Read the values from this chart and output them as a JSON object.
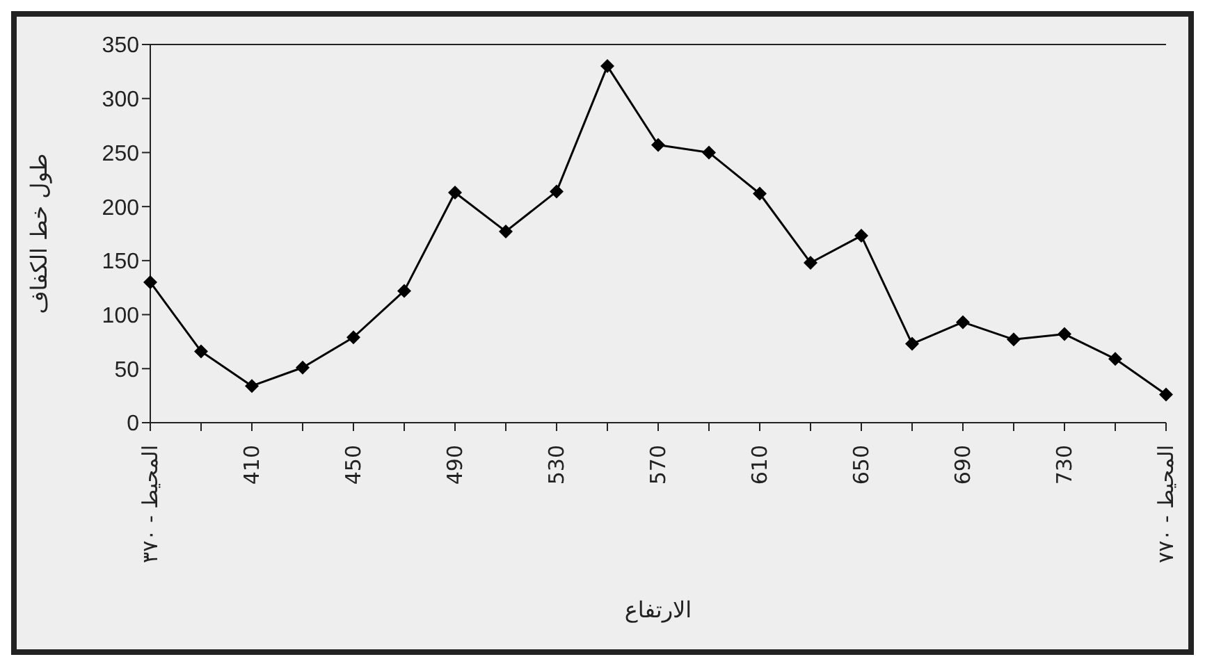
{
  "chart_data": {
    "type": "line",
    "xlabel": "الارتفاع",
    "ylabel": "طول خط الكفاف",
    "categories": [
      "المحيط - ٣٧٠",
      null,
      "410",
      null,
      "450",
      null,
      "490",
      null,
      "530",
      null,
      "570",
      null,
      "610",
      null,
      "650",
      null,
      "690",
      null,
      "730",
      null,
      "المحيط - ٧٧٠"
    ],
    "series": [
      {
        "color": "#000000",
        "values": [
          130,
          66,
          34,
          51,
          79,
          122,
          213,
          177,
          214,
          330,
          257,
          250,
          212,
          148,
          173,
          73,
          93,
          77,
          82,
          59,
          26
        ]
      }
    ],
    "ylim": [
      0,
      350
    ],
    "yticks": [
      0,
      50,
      100,
      150,
      200,
      250,
      300,
      350
    ],
    "marker": "diamond",
    "line_style": "solid"
  }
}
